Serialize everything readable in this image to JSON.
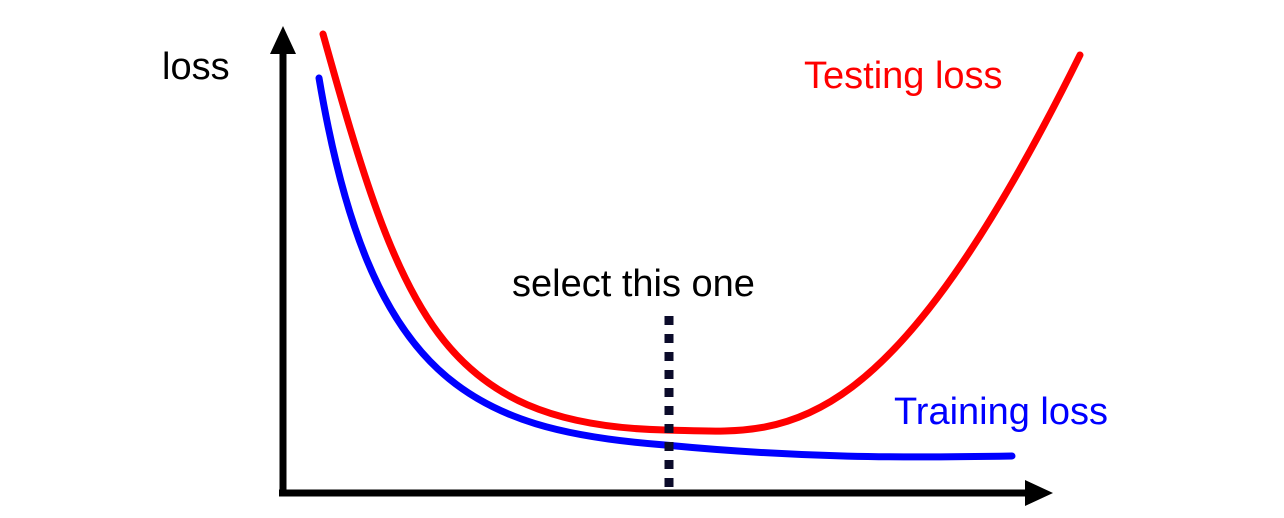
{
  "diagram": {
    "y_axis_label": "loss",
    "annotation": "select this one",
    "curves": [
      {
        "label": "Testing loss",
        "color": "#ff0000"
      },
      {
        "label": "Training loss",
        "color": "#0000ff"
      }
    ],
    "axis_color": "#000000",
    "marker_color": "#0b0b2a"
  }
}
